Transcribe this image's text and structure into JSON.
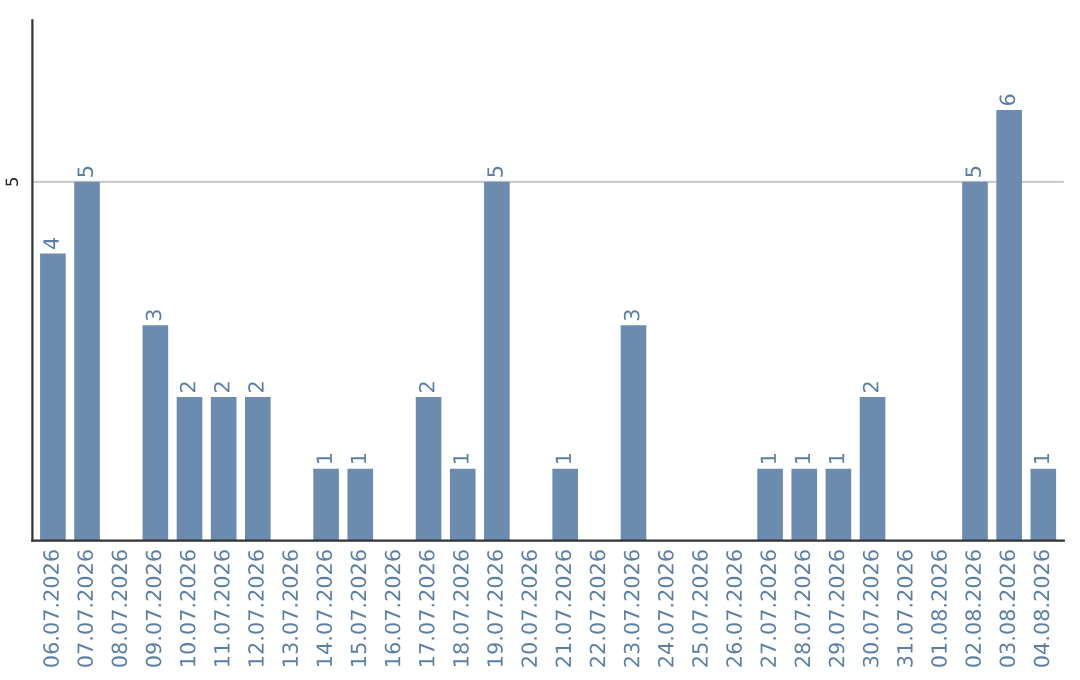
{
  "chart_data": {
    "type": "bar",
    "categories": [
      "06.07.2026",
      "07.07.2026",
      "08.07.2026",
      "09.07.2026",
      "10.07.2026",
      "11.07.2026",
      "12.07.2026",
      "13.07.2026",
      "14.07.2026",
      "15.07.2026",
      "16.07.2026",
      "17.07.2026",
      "18.07.2026",
      "19.07.2026",
      "20.07.2026",
      "21.07.2026",
      "22.07.2026",
      "23.07.2026",
      "24.07.2026",
      "25.07.2026",
      "26.07.2026",
      "27.07.2026",
      "28.07.2026",
      "29.07.2026",
      "30.07.2026",
      "31.07.2026",
      "01.08.2026",
      "02.08.2026",
      "03.08.2026",
      "04.08.2026"
    ],
    "values": [
      4,
      5,
      0,
      3,
      2,
      2,
      2,
      0,
      1,
      1,
      0,
      2,
      1,
      5,
      0,
      1,
      0,
      3,
      0,
      0,
      0,
      1,
      1,
      1,
      2,
      0,
      0,
      5,
      6,
      1
    ],
    "value_labels": [
      "4",
      "5",
      null,
      "3",
      "2",
      "2",
      "2",
      null,
      "1",
      "1",
      null,
      "2",
      "1",
      "5",
      null,
      "1",
      null,
      "3",
      null,
      null,
      null,
      "1",
      "1",
      "1",
      "2",
      null,
      null,
      "5",
      "6",
      "1"
    ],
    "color": "#6b8cae",
    "ylim": [
      0,
      7.25
    ],
    "yticks": [
      5
    ],
    "grid": "y",
    "legend": false
  }
}
